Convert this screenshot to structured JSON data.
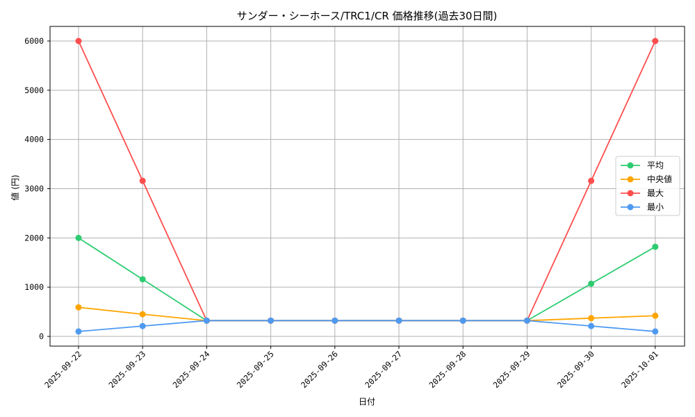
{
  "chart_data": {
    "type": "line",
    "title": "サンダー・シーホース/TRC1/CR 価格推移(過去30日間)",
    "xlabel": "日付",
    "ylabel": "値 (円)",
    "categories": [
      "2025-09-22",
      "2025-09-23",
      "2025-09-24",
      "2025-09-25",
      "2025-09-26",
      "2025-09-27",
      "2025-09-28",
      "2025-09-29",
      "2025-09-30",
      "2025-10-01"
    ],
    "ylim": [
      -200,
      6300
    ],
    "yticks": [
      0,
      1000,
      2000,
      3000,
      4000,
      5000,
      6000
    ],
    "grid": true,
    "legend_position": "center right",
    "series": [
      {
        "name": "平均",
        "color": "#2ECC71",
        "values": [
          2000,
          1160,
          320,
          320,
          320,
          320,
          320,
          320,
          1070,
          1820
        ]
      },
      {
        "name": "中央値",
        "color": "#FFA500",
        "values": [
          590,
          450,
          320,
          320,
          320,
          320,
          320,
          320,
          370,
          420
        ]
      },
      {
        "name": "最大",
        "color": "#FF4D4D",
        "values": [
          6000,
          3160,
          320,
          320,
          320,
          320,
          320,
          320,
          3160,
          6000
        ]
      },
      {
        "name": "最小",
        "color": "#4E9AF1",
        "values": [
          100,
          210,
          320,
          320,
          320,
          320,
          320,
          320,
          210,
          100
        ]
      }
    ]
  }
}
